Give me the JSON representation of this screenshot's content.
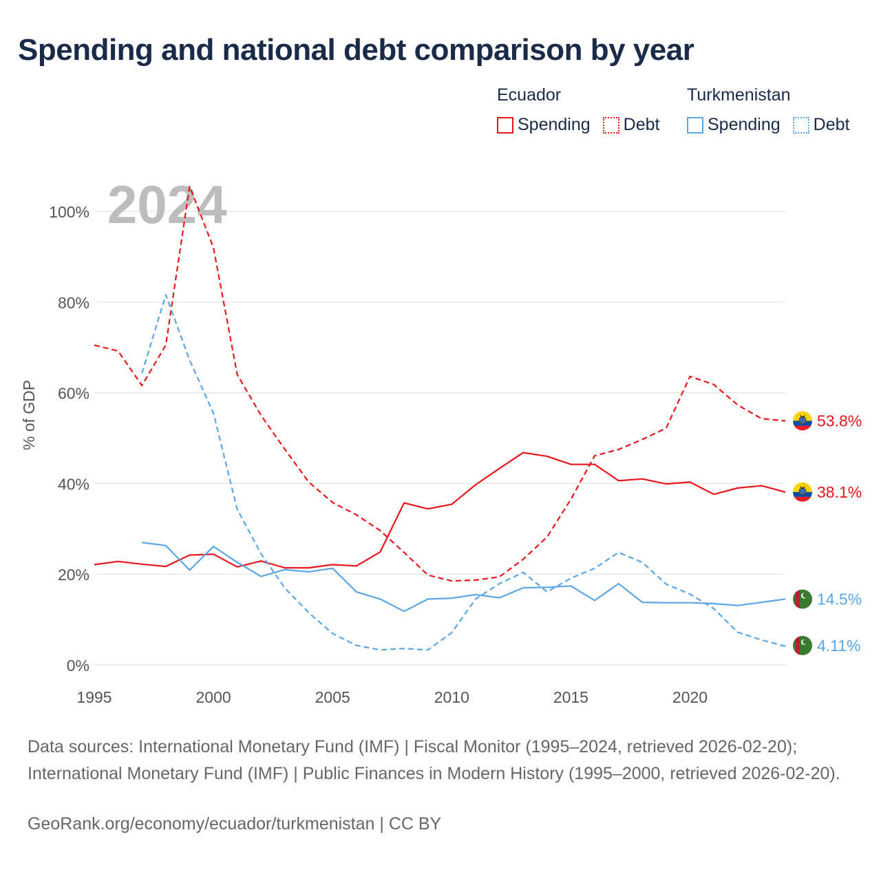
{
  "title": "Spending and national debt comparison by year",
  "legend": {
    "groups": [
      {
        "country": "Ecuador",
        "items": [
          {
            "label": "Spending",
            "style": "solid",
            "color": "#e8161b"
          },
          {
            "label": "Debt",
            "style": "dotted",
            "color": "#e8161b"
          }
        ]
      },
      {
        "country": "Turkmenistan",
        "items": [
          {
            "label": "Spending",
            "style": "solid",
            "color": "#5aa6e6"
          },
          {
            "label": "Debt",
            "style": "dotted",
            "color": "#5aa6e6"
          }
        ]
      }
    ]
  },
  "sources": "Data sources: International Monetary Fund (IMF) | Fiscal Monitor (1995–2024, retrieved 2026-02-20); International Monetary Fund (IMF) | Public Finances in Modern History (1995–2000, retrieved 2026-02-20).",
  "credit": "GeoRank.org/economy/ecuador/turkmenistan | CC BY",
  "chart_data": {
    "type": "line",
    "year_label": "2024",
    "ylabel": "% of GDP",
    "xlabel": "",
    "xlim": [
      1995,
      2024
    ],
    "ylim": [
      0,
      100
    ],
    "x_ticks": [
      1995,
      2000,
      2005,
      2010,
      2015,
      2020
    ],
    "y_ticks": [
      0,
      20,
      40,
      60,
      80,
      100
    ],
    "y_tick_labels": [
      "0%",
      "20%",
      "40%",
      "60%",
      "80%",
      "100%"
    ],
    "grid": true,
    "series": [
      {
        "name": "Ecuador Spending",
        "country": "Ecuador",
        "metric": "Spending",
        "color": "#e8161b",
        "dash": "solid",
        "end_label": "38.1%",
        "x": [
          1995,
          1996,
          1997,
          1998,
          1999,
          2000,
          2001,
          2002,
          2003,
          2004,
          2005,
          2006,
          2007,
          2008,
          2009,
          2010,
          2011,
          2012,
          2013,
          2014,
          2015,
          2016,
          2017,
          2018,
          2019,
          2020,
          2021,
          2022,
          2023,
          2024
        ],
        "values": [
          22.1,
          22.8,
          22.2,
          21.7,
          24.2,
          24.4,
          21.6,
          22.9,
          21.4,
          21.4,
          22.1,
          21.8,
          24.9,
          35.7,
          34.4,
          35.4,
          39.7,
          43.3,
          46.8,
          46.0,
          44.2,
          44.2,
          40.6,
          41.0,
          39.9,
          40.3,
          37.6,
          39.0,
          39.5,
          38.1
        ]
      },
      {
        "name": "Ecuador Debt",
        "country": "Ecuador",
        "metric": "Debt",
        "color": "#e8161b",
        "dash": "dashed",
        "end_label": "53.8%",
        "x": [
          1995,
          1996,
          1997,
          1998,
          1999,
          2000,
          2001,
          2002,
          2003,
          2004,
          2005,
          2006,
          2007,
          2008,
          2009,
          2010,
          2011,
          2012,
          2013,
          2014,
          2015,
          2016,
          2017,
          2018,
          2019,
          2020,
          2021,
          2022,
          2023,
          2024
        ],
        "values": [
          70.5,
          69.2,
          61.6,
          70.5,
          105.5,
          92.0,
          64.0,
          55.0,
          47.5,
          40.3,
          35.8,
          33.1,
          29.6,
          24.8,
          19.8,
          18.5,
          18.7,
          19.4,
          23.3,
          28.2,
          36.5,
          46.1,
          47.5,
          49.7,
          52.2,
          63.6,
          61.8,
          57.3,
          54.3,
          53.8
        ]
      },
      {
        "name": "Turkmenistan Spending",
        "country": "Turkmenistan",
        "metric": "Spending",
        "color": "#5aa6e6",
        "dash": "solid",
        "end_label": "14.5%",
        "x": [
          1997,
          1998,
          1999,
          2000,
          2001,
          2002,
          2003,
          2004,
          2005,
          2006,
          2007,
          2008,
          2009,
          2010,
          2011,
          2012,
          2013,
          2014,
          2015,
          2016,
          2017,
          2018,
          2019,
          2020,
          2021,
          2022,
          2023,
          2024
        ],
        "values": [
          27.0,
          26.3,
          20.9,
          26.1,
          22.6,
          19.5,
          21.0,
          20.5,
          21.3,
          16.1,
          14.5,
          11.8,
          14.5,
          14.7,
          15.5,
          14.8,
          17.0,
          17.1,
          17.4,
          14.2,
          17.9,
          13.8,
          13.7,
          13.7,
          13.5,
          13.1,
          13.8,
          14.5
        ]
      },
      {
        "name": "Turkmenistan Debt",
        "country": "Turkmenistan",
        "metric": "Debt",
        "color": "#5aa6e6",
        "dash": "dashed",
        "end_label": "4.11%",
        "x": [
          1997,
          1998,
          1999,
          2000,
          2001,
          2002,
          2003,
          2004,
          2005,
          2006,
          2007,
          2008,
          2009,
          2010,
          2011,
          2012,
          2013,
          2014,
          2015,
          2016,
          2017,
          2018,
          2019,
          2020,
          2021,
          2022,
          2023,
          2024
        ],
        "values": [
          64.3,
          81.6,
          67.2,
          55.5,
          34.3,
          24.5,
          16.9,
          11.5,
          6.9,
          4.3,
          3.3,
          3.6,
          3.3,
          7.1,
          14.5,
          17.9,
          20.4,
          16.1,
          19.1,
          21.3,
          24.8,
          22.6,
          17.8,
          15.6,
          12.4,
          7.2,
          5.5,
          4.11
        ]
      }
    ]
  }
}
